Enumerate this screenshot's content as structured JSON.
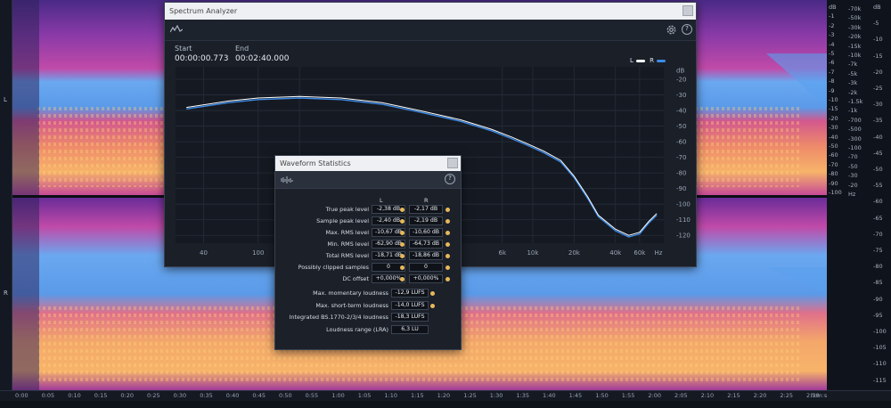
{
  "spectrogram": {
    "channel_top": "L",
    "channel_bottom": "R",
    "db_scale": [
      "dB",
      "-1",
      "-2",
      "-3",
      "-4",
      "-5",
      "-6",
      "-7",
      "-8",
      "-9",
      "-10",
      "-15",
      "-20",
      "-30",
      "-40",
      "-50",
      "-60",
      "-70",
      "-80",
      "-90",
      "-100"
    ],
    "hz_scale": [
      "-70k",
      "-50k",
      "-30k",
      "-20k",
      "-15k",
      "-10k",
      "-7k",
      "-5k",
      "-3k",
      "-2k",
      "-1.5k",
      "-1k",
      "-700",
      "-500",
      "-300",
      "-100",
      "-70",
      "-50",
      "-30",
      "-20",
      "Hz"
    ],
    "right_db": [
      "dB",
      "-5",
      "-10",
      "-15",
      "-20",
      "-25",
      "-30",
      "-35",
      "-40",
      "-45",
      "-50",
      "-55",
      "-60",
      "-65",
      "-70",
      "-75",
      "-80",
      "-85",
      "-90",
      "-95",
      "-100",
      "-105",
      "-110",
      "-115"
    ]
  },
  "timeline": {
    "ticks": [
      "0:00",
      "0:05",
      "0:10",
      "0:15",
      "0:20",
      "0:25",
      "0:30",
      "0:35",
      "0:40",
      "0:45",
      "0:50",
      "0:55",
      "1:00",
      "1:05",
      "1:10",
      "1:15",
      "1:20",
      "1:25",
      "1:30",
      "1:35",
      "1:40",
      "1:45",
      "1:50",
      "1:55",
      "2:00",
      "2:05",
      "2:10",
      "2:15",
      "2:20",
      "2:25",
      "2:30"
    ],
    "unit": "h:m:s"
  },
  "spectrum_analyzer": {
    "title": "Spectrum Analyzer",
    "start_label": "Start",
    "end_label": "End",
    "start_time": "00:00:00.773",
    "end_time": "00:02:40.000",
    "legend_l": "L",
    "legend_r": "R",
    "colors": {
      "L": "#ffffff",
      "R": "#3d8ae6"
    },
    "chart_data": {
      "type": "line",
      "xlabel": "Hz",
      "ylabel": "dB",
      "x_ticks": [
        "40",
        "100",
        "200",
        "6k",
        "10k",
        "20k",
        "40k",
        "60k",
        "Hz"
      ],
      "y_ticks": [
        "dB",
        "-20",
        "-30",
        "-40",
        "-50",
        "-60",
        "-70",
        "-80",
        "-90",
        "-100",
        "-110",
        "-120"
      ],
      "ylim": [
        -125,
        -12
      ],
      "x_scale": "log",
      "series": [
        {
          "name": "L",
          "x": [
            30,
            60,
            100,
            200,
            400,
            800,
            1500,
            3000,
            5000,
            7000,
            9000,
            12000,
            16000,
            20000,
            25000,
            30000,
            40000,
            50000,
            60000,
            70000,
            80000
          ],
          "values": [
            -38,
            -34,
            -32,
            -31,
            -32,
            -35,
            -40,
            -46,
            -52,
            -57,
            -61,
            -66,
            -72,
            -82,
            -95,
            -107,
            -116,
            -120,
            -118,
            -111,
            -106
          ]
        },
        {
          "name": "R",
          "x": [
            30,
            60,
            100,
            200,
            400,
            800,
            1500,
            3000,
            5000,
            7000,
            9000,
            12000,
            16000,
            20000,
            25000,
            30000,
            40000,
            50000,
            60000,
            70000,
            80000
          ],
          "values": [
            -39,
            -35,
            -33,
            -32,
            -33,
            -36,
            -41,
            -47,
            -53,
            -58,
            -62,
            -67,
            -73,
            -83,
            -96,
            -108,
            -117,
            -121,
            -119,
            -112,
            -107
          ]
        }
      ]
    }
  },
  "waveform_statistics": {
    "title": "Waveform Statistics",
    "col_l": "L",
    "col_r": "R",
    "rows": [
      {
        "label": "True peak level",
        "l": "-2,38 dB",
        "r": "-2,17 dB"
      },
      {
        "label": "Sample peak level",
        "l": "-2,40 dB",
        "r": "-2,19 dB"
      },
      {
        "label": "Max. RMS level",
        "l": "-10,67 dB",
        "r": "-10,60 dB"
      },
      {
        "label": "Min. RMS level",
        "l": "-62,90 dB",
        "r": "-64,73 dB"
      },
      {
        "label": "Total RMS level",
        "l": "-18,71 dB",
        "r": "-18,86 dB"
      },
      {
        "label": "Possibly clipped samples",
        "l": "0",
        "r": "0"
      },
      {
        "label": "DC offset",
        "l": "+0,000%",
        "r": "+0,000%"
      }
    ],
    "loudness": [
      {
        "label": "Max. momentary loudness",
        "value": "-12,9 LUFS"
      },
      {
        "label": "Max. short-term loudness",
        "value": "-14,0 LUFS"
      },
      {
        "label": "Integrated BS.1770-2/3/4 loudness",
        "value": "-18,3 LUFS"
      },
      {
        "label": "Loudness range (LRA)",
        "value": "6,3 LU"
      }
    ]
  }
}
